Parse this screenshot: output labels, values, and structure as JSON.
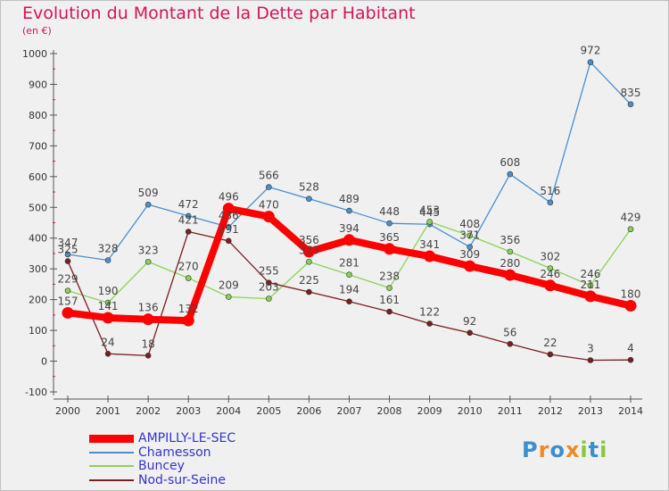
{
  "header": {
    "title": "Evolution du Montant de la Dette par Habitant",
    "unit": "(en €)"
  },
  "logo": {
    "text": "Proxiti",
    "letters": [
      "P",
      "r",
      "o",
      "x",
      "i",
      "t",
      "i"
    ],
    "colors": [
      "#3a8fd0",
      "#f08a24",
      "#3a8fd0",
      "#f08a24",
      "#8cc63f",
      "#3a8fd0",
      "#8cc63f"
    ]
  },
  "chart_data": {
    "type": "line",
    "categories": [
      "2000",
      "2001",
      "2002",
      "2003",
      "2004",
      "2005",
      "2006",
      "2007",
      "2008",
      "2009",
      "2010",
      "2011",
      "2012",
      "2013",
      "2014"
    ],
    "ylim": [
      -100,
      1000
    ],
    "yticks": [
      -100,
      0,
      100,
      200,
      300,
      400,
      500,
      600,
      700,
      800,
      900,
      1000
    ],
    "grid": false,
    "legend_position": "bottom-left",
    "series": [
      {
        "name": "Chamesson",
        "color": "#4a8fcf",
        "values": [
          347,
          328,
          509,
          472,
          436,
          566,
          528,
          489,
          448,
          445,
          371,
          608,
          516,
          972,
          835
        ]
      },
      {
        "name": "Buncey",
        "color": "#8cd25a",
        "values": [
          229,
          190,
          323,
          270,
          209,
          203,
          323,
          281,
          238,
          453,
          408,
          356,
          302,
          246,
          429
        ]
      },
      {
        "name": "Nod-sur-Seine",
        "color": "#7a1f1f",
        "values": [
          325,
          24,
          18,
          421,
          391,
          255,
          225,
          194,
          161,
          122,
          92,
          56,
          22,
          3,
          4
        ]
      },
      {
        "name": "AMPILLY-LE-SEC",
        "color": "#ff0000",
        "values": [
          157,
          141,
          136,
          132,
          496,
          470,
          356,
          394,
          365,
          341,
          309,
          280,
          246,
          211,
          180
        ]
      }
    ]
  }
}
